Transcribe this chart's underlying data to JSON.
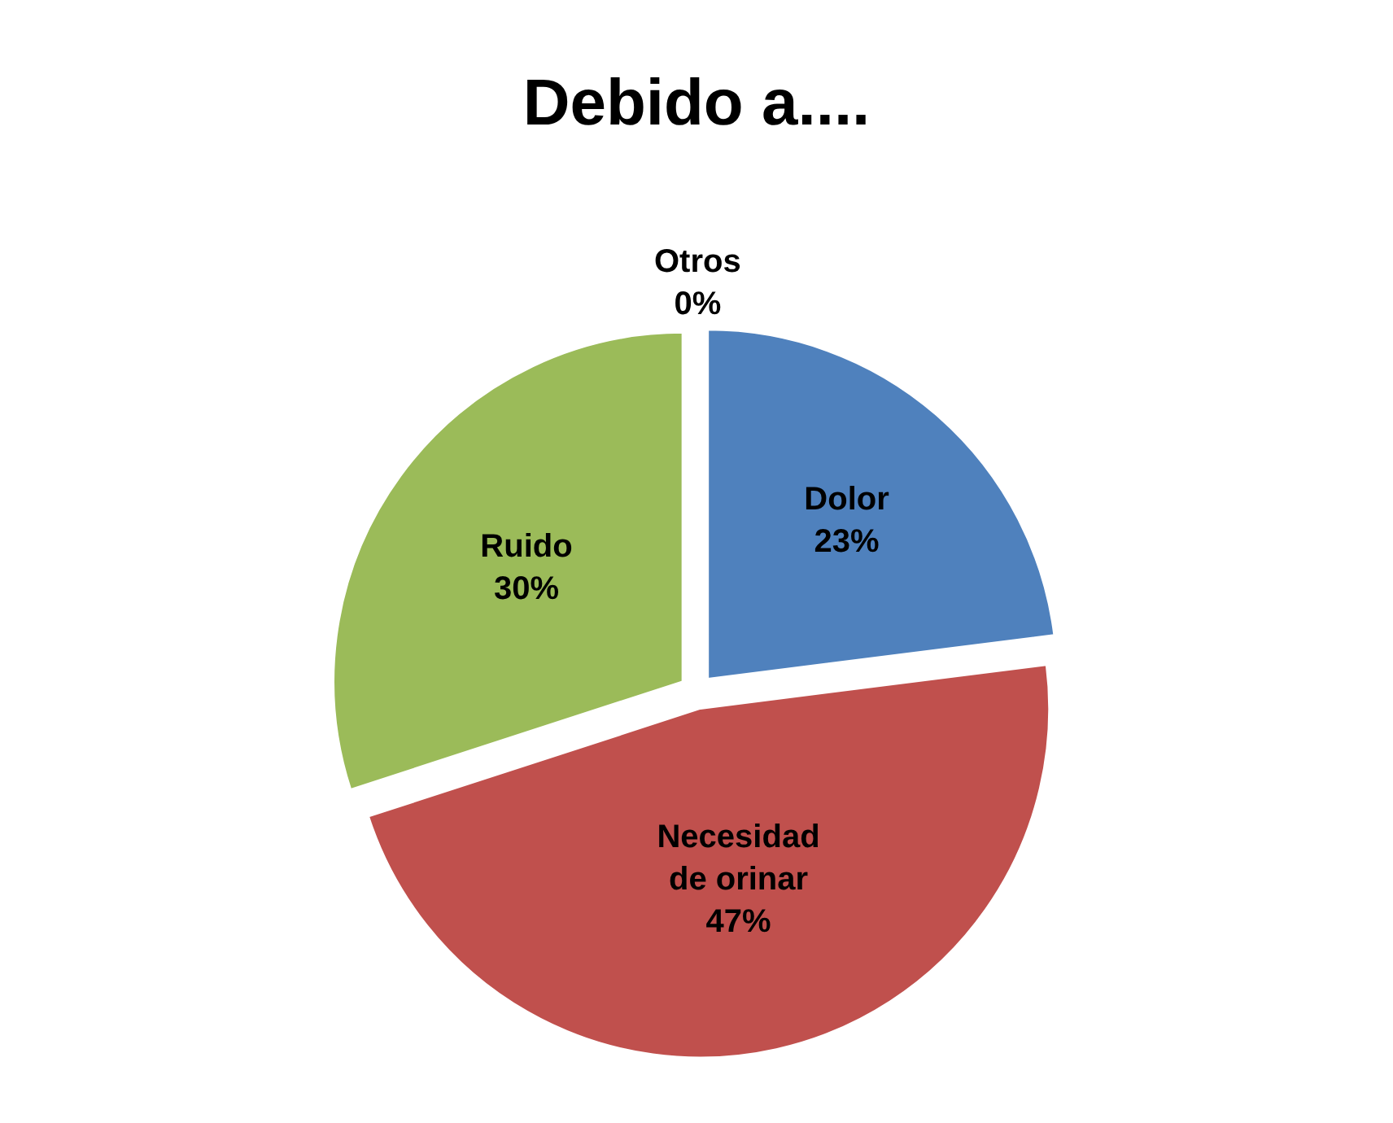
{
  "chart_data": {
    "type": "pie",
    "title": "Debido a....",
    "categories": [
      "Dolor",
      "Necesidad de orinar",
      "Ruido",
      "Otros"
    ],
    "values": [
      23,
      47,
      30,
      0
    ],
    "colors": [
      "#4f81bd",
      "#c0504d",
      "#9bbb59",
      "#8064a2"
    ],
    "value_labels": [
      "23%",
      "47%",
      "30%",
      "0%"
    ],
    "legend": false
  }
}
